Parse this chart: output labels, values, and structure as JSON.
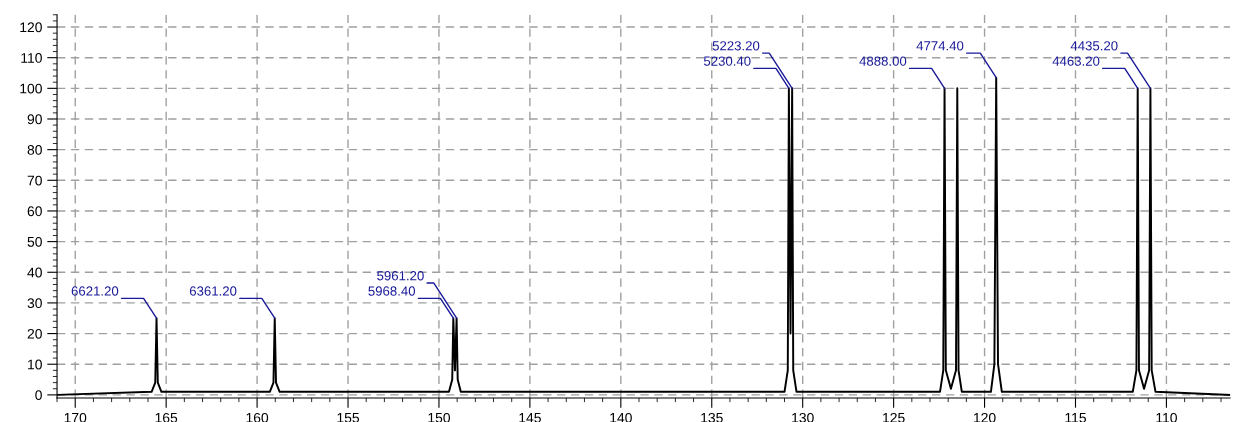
{
  "chart_data": {
    "type": "line",
    "series": [
      {
        "color": "#000000",
        "x": [
          171,
          165.8,
          165.6,
          165.53,
          165.46,
          165.26,
          159.3,
          159.1,
          159.03,
          158.96,
          158.76,
          149.45,
          149.27,
          149.21,
          149.12,
          149.03,
          148.97,
          148.8,
          131.0,
          130.82,
          130.76,
          130.67,
          130.58,
          130.52,
          130.34,
          122.45,
          122.27,
          122.2,
          122.13,
          121.85,
          121.57,
          121.5,
          121.43,
          121.25,
          119.65,
          119.46,
          119.36,
          119.26,
          119.05,
          111.85,
          111.65,
          111.58,
          111.51,
          111.23,
          110.95,
          110.88,
          110.81,
          110.6,
          106.5
        ],
        "values": [
          0,
          1,
          4,
          25,
          4,
          1,
          1,
          4,
          25,
          4,
          1,
          1,
          5,
          25,
          8,
          25,
          5,
          1,
          1,
          8,
          100,
          20,
          100,
          8,
          1,
          1,
          8,
          100,
          8,
          2,
          8,
          100,
          8,
          1,
          1,
          10,
          103.5,
          10,
          1,
          1,
          8,
          100,
          8,
          2,
          8,
          100,
          8,
          1,
          0
        ]
      }
    ],
    "xlim": [
      171,
      106.5
    ],
    "xticks": [
      170,
      165,
      160,
      155,
      150,
      145,
      140,
      135,
      130,
      125,
      120,
      115,
      110
    ],
    "ylim": [
      -1,
      124
    ],
    "yticks": [
      0,
      10,
      20,
      30,
      40,
      50,
      60,
      70,
      80,
      90,
      100,
      110,
      120
    ],
    "grid": true,
    "marker": "none",
    "line_style": "solid",
    "annotations": [
      {
        "text": "6621.20",
        "x": 165.53,
        "y": 25
      },
      {
        "text": "6361.20",
        "x": 159.03,
        "y": 25
      },
      {
        "text": "5968.40",
        "x": 149.21,
        "y": 25
      },
      {
        "text": "5961.20",
        "x": 149.03,
        "y": 25
      },
      {
        "text": "5230.40",
        "x": 130.76,
        "y": 100
      },
      {
        "text": "5223.20",
        "x": 130.58,
        "y": 100
      },
      {
        "text": "4888.00",
        "x": 122.2,
        "y": 100
      },
      {
        "text": "4774.40",
        "x": 119.36,
        "y": 103.5
      },
      {
        "text": "4463.20",
        "x": 111.58,
        "y": 100
      },
      {
        "text": "4435.20",
        "x": 110.88,
        "y": 100
      }
    ]
  }
}
